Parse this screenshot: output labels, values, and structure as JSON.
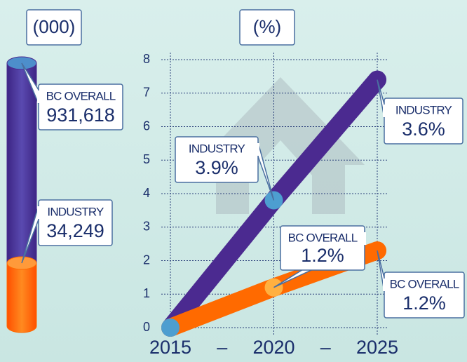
{
  "chart_data": [
    {
      "type": "cylinder",
      "title": "(000)",
      "series": [
        {
          "name": "BC OVERALL",
          "color": "#4b2a90",
          "values": [
            931618
          ],
          "value_labels": [
            "931,618"
          ]
        },
        {
          "name": "INDUSTRY",
          "color": "#ff6a00",
          "values": [
            34249
          ],
          "value_labels": [
            "34,249"
          ]
        }
      ]
    },
    {
      "type": "line",
      "title": "(%)",
      "x": [
        2015,
        2020,
        2025
      ],
      "xlim": [
        2015,
        2025
      ],
      "xticks": [
        2015,
        2020,
        2025
      ],
      "x_separator": "–",
      "ylim": [
        0,
        8
      ],
      "yticks": [
        0,
        1,
        2,
        3,
        4,
        5,
        6,
        7,
        8
      ],
      "grid": true,
      "series": [
        {
          "name": "INDUSTRY",
          "color": "#4b2a90",
          "values": [
            0,
            3.8,
            7.4
          ],
          "growth_rates": [
            3.9,
            3.6
          ],
          "growth_rate_labels": [
            "3.9%",
            "3.6%"
          ]
        },
        {
          "name": "BC OVERALL",
          "color": "#ff6a00",
          "values": [
            0,
            1.2,
            2.3
          ],
          "growth_rates": [
            1.2,
            1.2
          ],
          "growth_rate_labels": [
            "1.2%",
            "1.2%"
          ]
        }
      ]
    }
  ]
}
